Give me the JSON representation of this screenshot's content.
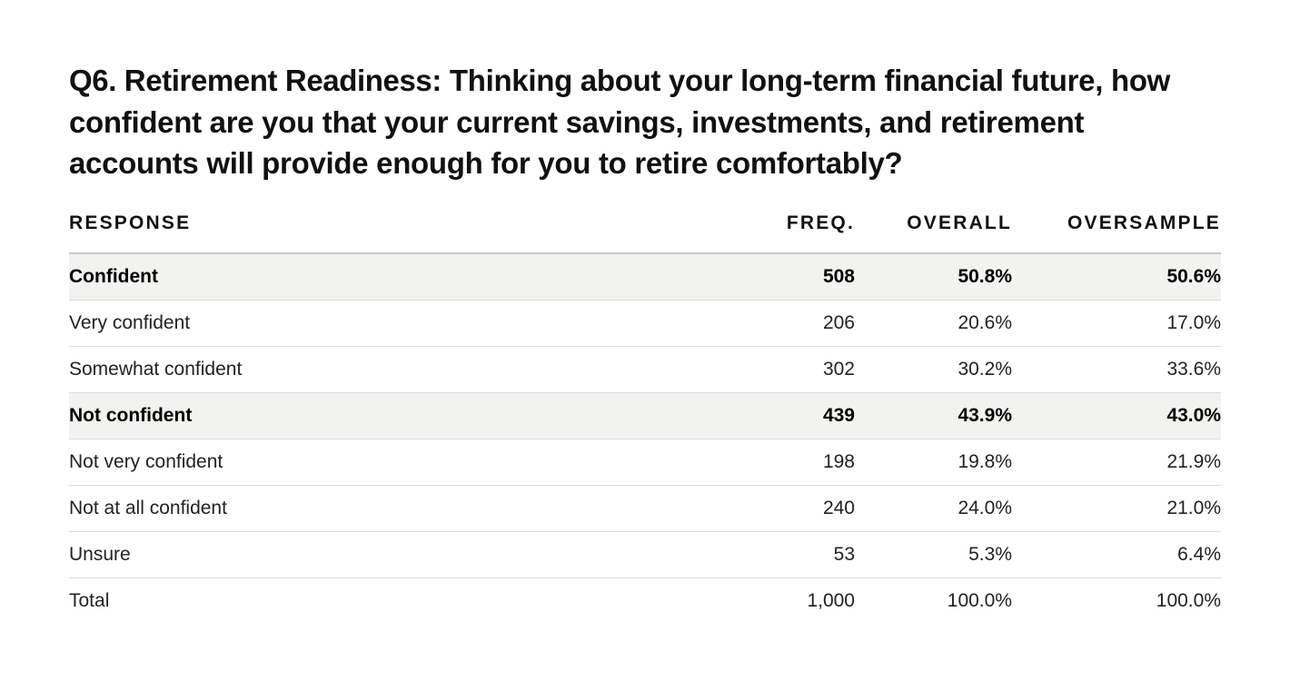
{
  "question": {
    "label": "Q6. Retirement Readiness:",
    "text": "Thinking about your long-term financial future, how confident are you that your current savings, investments, and retirement accounts will provide enough for you to retire comfortably?"
  },
  "table": {
    "headers": {
      "response": "RESPONSE",
      "freq": "FREQ.",
      "overall": "OVERALL",
      "oversample": "OVERSAMPLE"
    },
    "rows": [
      {
        "response": "Confident",
        "freq": "508",
        "overall": "50.8%",
        "oversample": "50.6%",
        "group": true
      },
      {
        "response": "Very confident",
        "freq": "206",
        "overall": "20.6%",
        "oversample": "17.0%",
        "group": false
      },
      {
        "response": "Somewhat confident",
        "freq": "302",
        "overall": "30.2%",
        "oversample": "33.6%",
        "group": false
      },
      {
        "response": "Not confident",
        "freq": "439",
        "overall": "43.9%",
        "oversample": "43.0%",
        "group": true
      },
      {
        "response": "Not very confident",
        "freq": "198",
        "overall": "19.8%",
        "oversample": "21.9%",
        "group": false
      },
      {
        "response": "Not at all confident",
        "freq": "240",
        "overall": "24.0%",
        "oversample": "21.0%",
        "group": false
      },
      {
        "response": "Unsure",
        "freq": "53",
        "overall": "5.3%",
        "oversample": "6.4%",
        "group": false
      },
      {
        "response": "Total",
        "freq": "1,000",
        "overall": "100.0%",
        "oversample": "100.0%",
        "group": false
      }
    ]
  },
  "colors": {
    "group_row_background": "#f2f2f0",
    "header_rule": "#c8c8c8",
    "row_rule": "#dcdcdc",
    "text": "#222222"
  }
}
